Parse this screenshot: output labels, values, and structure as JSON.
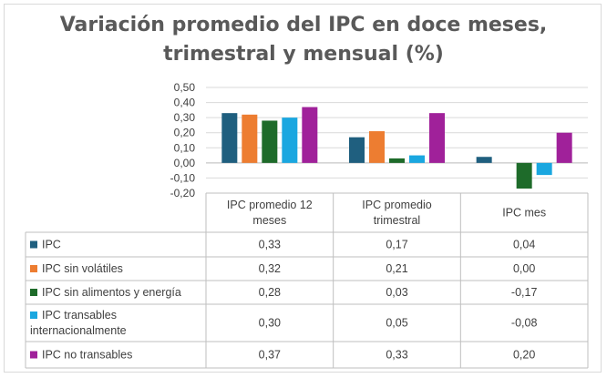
{
  "chart_data": {
    "type": "bar",
    "title_line1": "Variación promedio del  IPC en doce meses,",
    "title_line2": "trimestral y mensual (%)",
    "categories": [
      "IPC promedio 12 meses",
      "IPC promedio trimestral",
      "IPC mes"
    ],
    "category_lines": [
      [
        "IPC promedio 12",
        "meses"
      ],
      [
        "IPC promedio",
        "trimestral"
      ],
      [
        "IPC mes"
      ]
    ],
    "series": [
      {
        "name": "IPC",
        "lines": [
          "IPC"
        ],
        "color": "#1f5f7f",
        "values": [
          0.33,
          0.17,
          0.04
        ],
        "labels": [
          "0,33",
          "0,17",
          "0,04"
        ]
      },
      {
        "name": "IPC sin volátiles",
        "lines": [
          "IPC sin volátiles"
        ],
        "color": "#ed7d31",
        "values": [
          0.32,
          0.21,
          0.0
        ],
        "labels": [
          "0,32",
          "0,21",
          "0,00"
        ]
      },
      {
        "name": "IPC sin alimentos y energía",
        "lines": [
          "IPC sin alimentos y energía"
        ],
        "color": "#1e6b2a",
        "values": [
          0.28,
          0.03,
          -0.17
        ],
        "labels": [
          "0,28",
          "0,03",
          "-0,17"
        ]
      },
      {
        "name": "IPC transables internacionalmente",
        "lines": [
          "    IPC transables",
          "internacionalmente"
        ],
        "color": "#1aa7e0",
        "values": [
          0.3,
          0.05,
          -0.08
        ],
        "labels": [
          "0,30",
          "0,05",
          "-0,08"
        ]
      },
      {
        "name": "IPC no transables",
        "lines": [
          "IPC no transables"
        ],
        "color": "#a0219a",
        "values": [
          0.37,
          0.33,
          0.2
        ],
        "labels": [
          "0,37",
          "0,33",
          "0,20"
        ]
      }
    ],
    "ylim": [
      -0.2,
      0.5
    ],
    "yticks": [
      0.5,
      0.4,
      0.3,
      0.2,
      0.1,
      0.0,
      -0.1,
      -0.2
    ],
    "ytick_labels": [
      "0,50",
      "0,40",
      "0,30",
      "0,20",
      "0,10",
      "0,00",
      "-0,10",
      "-0,20"
    ],
    "grid": true,
    "legend": "data-table"
  }
}
